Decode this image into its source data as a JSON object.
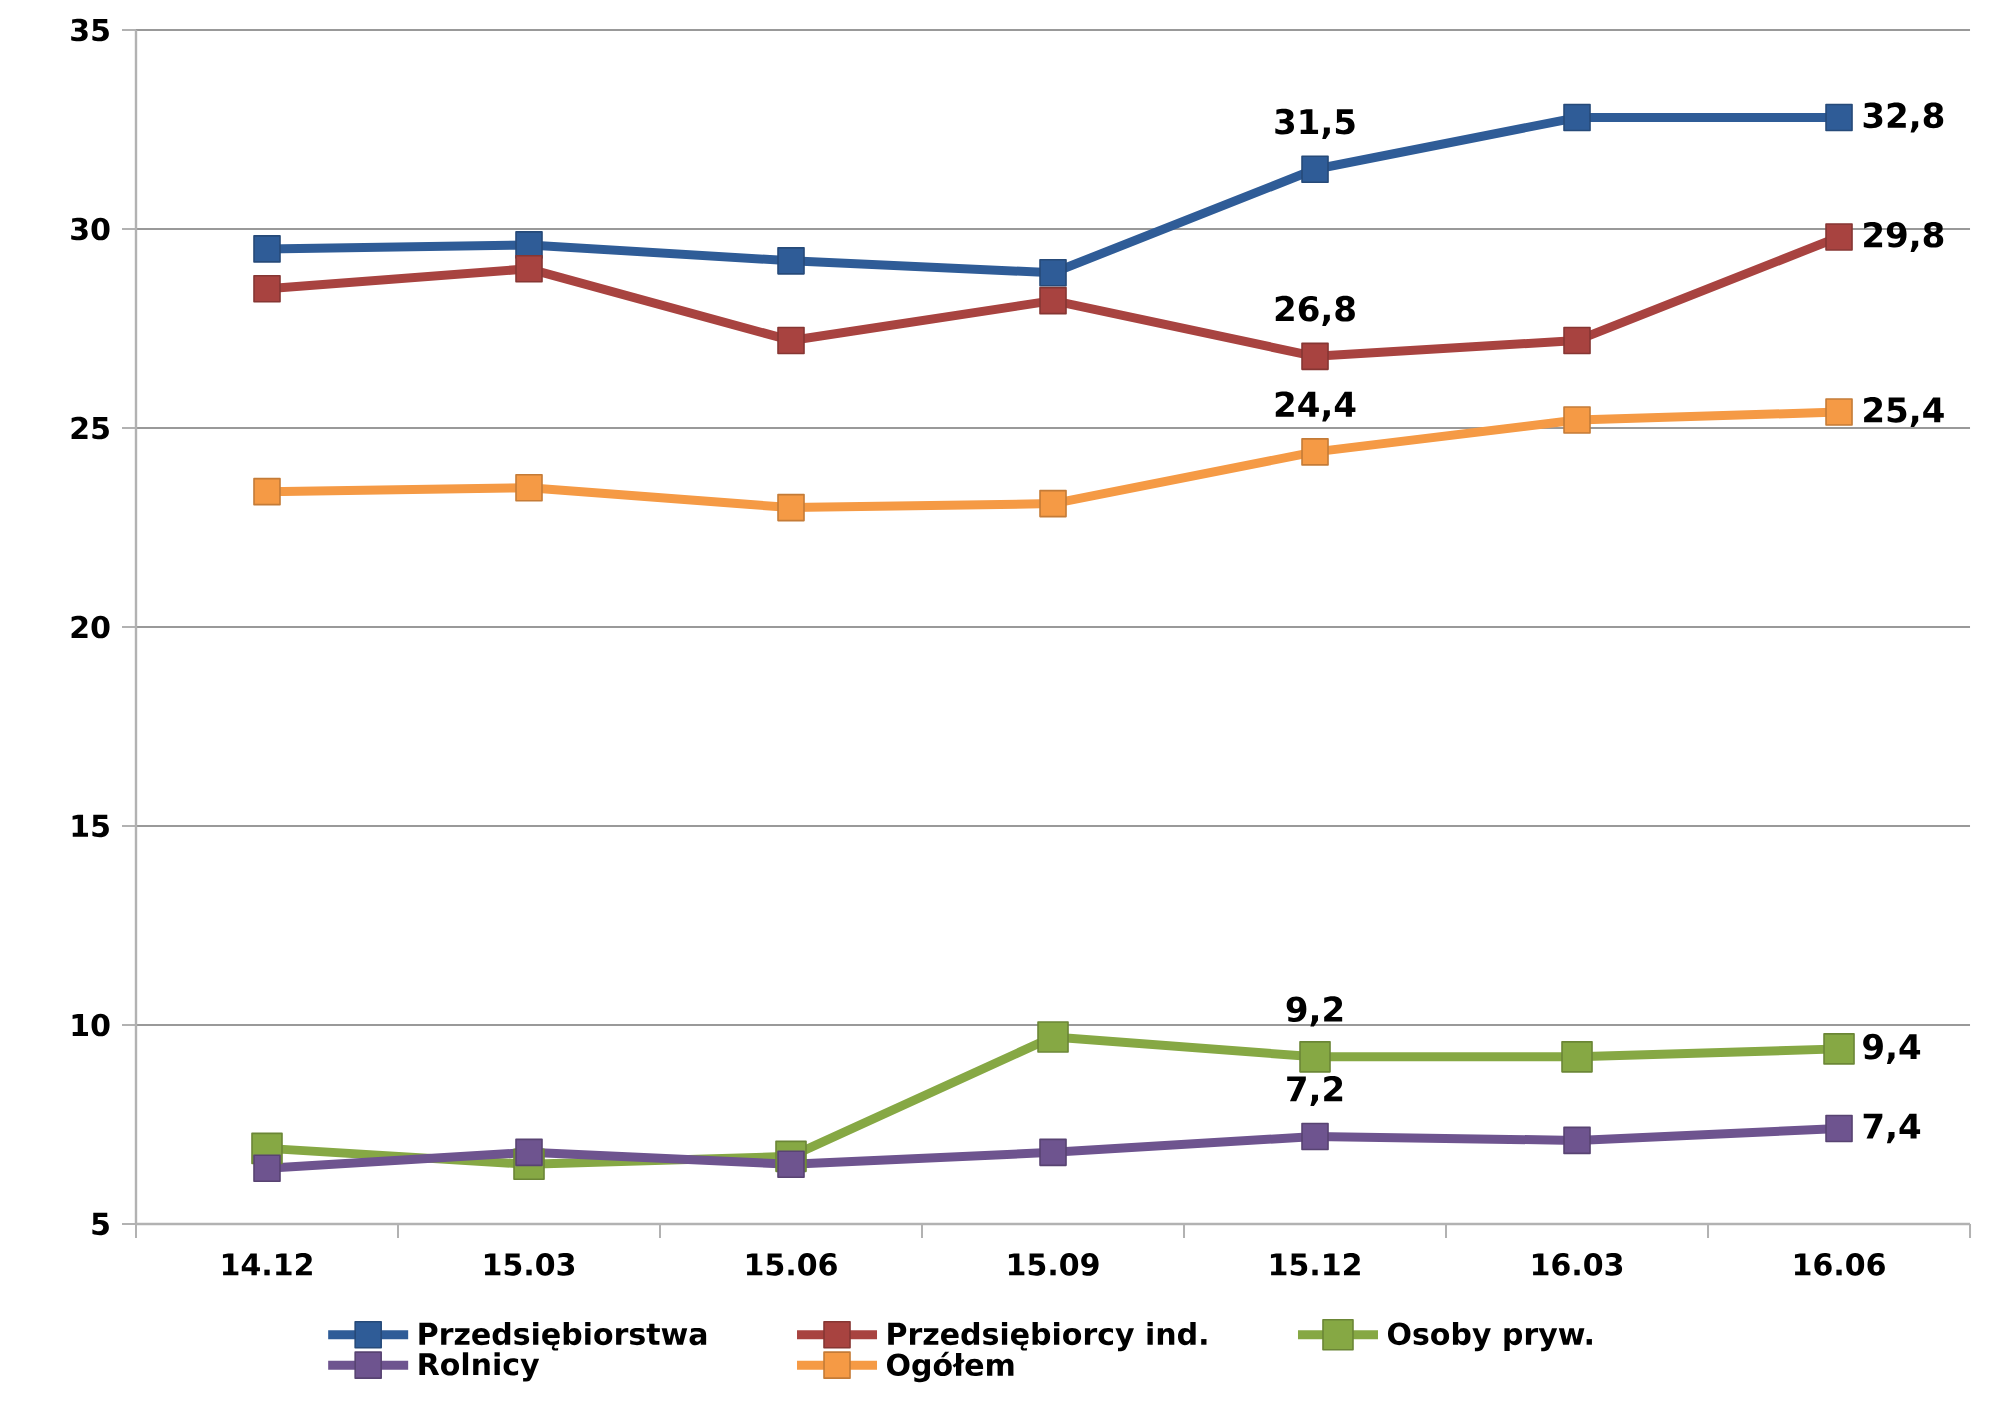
{
  "chart_data": {
    "type": "line",
    "categories": [
      "14.12",
      "15.03",
      "15.06",
      "15.09",
      "15.12",
      "16.03",
      "16.06"
    ],
    "series": [
      {
        "name": "Przedsiębiorstwa",
        "color": "#2f5c97",
        "values": [
          29.5,
          29.6,
          29.2,
          28.9,
          31.5,
          32.8,
          32.8
        ],
        "value_labels": [
          null,
          null,
          null,
          null,
          "31,5",
          null,
          "32,8"
        ]
      },
      {
        "name": "Przedsiębiorcy ind.",
        "color": "#a84340",
        "values": [
          28.5,
          29.0,
          27.2,
          28.2,
          26.8,
          27.2,
          29.8
        ],
        "value_labels": [
          null,
          null,
          null,
          null,
          "26,8",
          null,
          "29,8"
        ]
      },
      {
        "name": "Osoby pryw.",
        "color": "#86a844",
        "values": [
          6.9,
          6.5,
          6.7,
          9.7,
          9.2,
          9.2,
          9.4
        ],
        "value_labels": [
          null,
          null,
          null,
          null,
          "9,2",
          null,
          "9,4"
        ]
      },
      {
        "name": "Rolnicy",
        "color": "#6e548f",
        "values": [
          6.4,
          6.8,
          6.5,
          6.8,
          7.2,
          7.1,
          7.4
        ],
        "value_labels": [
          null,
          null,
          null,
          null,
          "7,2",
          null,
          "7,4"
        ]
      },
      {
        "name": "Ogółem",
        "color": "#f59a45",
        "values": [
          23.4,
          23.5,
          23.0,
          23.1,
          24.4,
          25.2,
          25.4
        ],
        "value_labels": [
          null,
          null,
          null,
          null,
          "24,4",
          null,
          "25,4"
        ]
      }
    ],
    "ylim": [
      5,
      35
    ],
    "yticks": [
      5,
      10,
      15,
      20,
      25,
      30,
      35
    ],
    "grid": "y",
    "legend": "bottom",
    "marker": "square",
    "line_style": "solid"
  }
}
